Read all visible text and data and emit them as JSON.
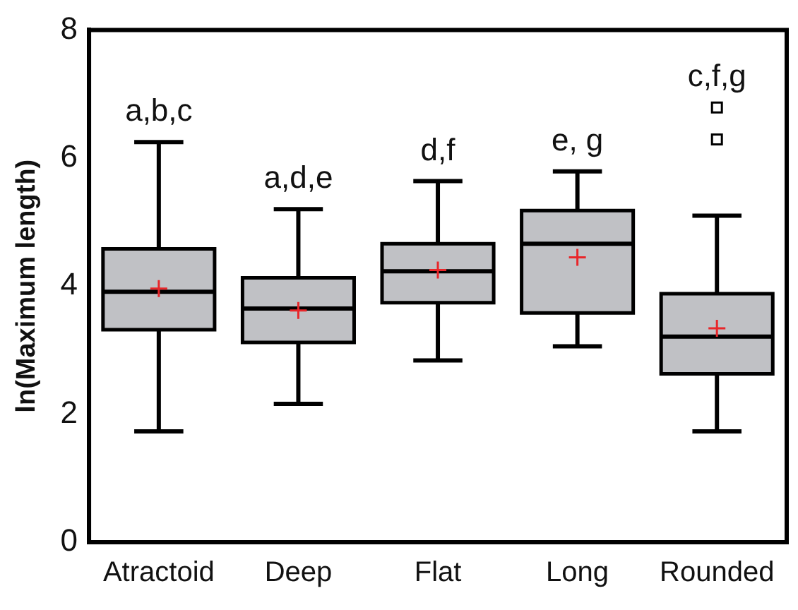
{
  "chart_data": {
    "type": "box",
    "ylabel": "ln(Maximum length)",
    "categories": [
      "Atractoid",
      "Deep",
      "Flat",
      "Long",
      "Rounded"
    ],
    "color": "#c0c1c5",
    "boxes": [
      {
        "low": 1.73,
        "q1": 3.32,
        "median": 3.91,
        "q3": 4.58,
        "high": 6.25,
        "mean": 3.96
      },
      {
        "low": 2.16,
        "q1": 3.12,
        "median": 3.65,
        "q3": 4.13,
        "high": 5.2,
        "mean": 3.62
      },
      {
        "low": 2.84,
        "q1": 3.74,
        "median": 4.23,
        "q3": 4.66,
        "high": 5.64,
        "mean": 4.25
      },
      {
        "low": 3.06,
        "q1": 3.58,
        "median": 4.66,
        "q3": 5.18,
        "high": 5.79,
        "mean": 4.45
      },
      {
        "low": 1.73,
        "q1": 2.63,
        "median": 3.21,
        "q3": 3.88,
        "high": 5.1,
        "mean": 3.34,
        "outliers": [
          6.29,
          6.79
        ]
      }
    ],
    "ylim": [
      0,
      8
    ],
    "yticks": [
      0,
      2,
      4,
      6,
      8
    ],
    "grid": false,
    "annotations": [
      "a,b,c",
      "a,d,e",
      "d,f",
      "e, g",
      "c,f,g"
    ]
  }
}
